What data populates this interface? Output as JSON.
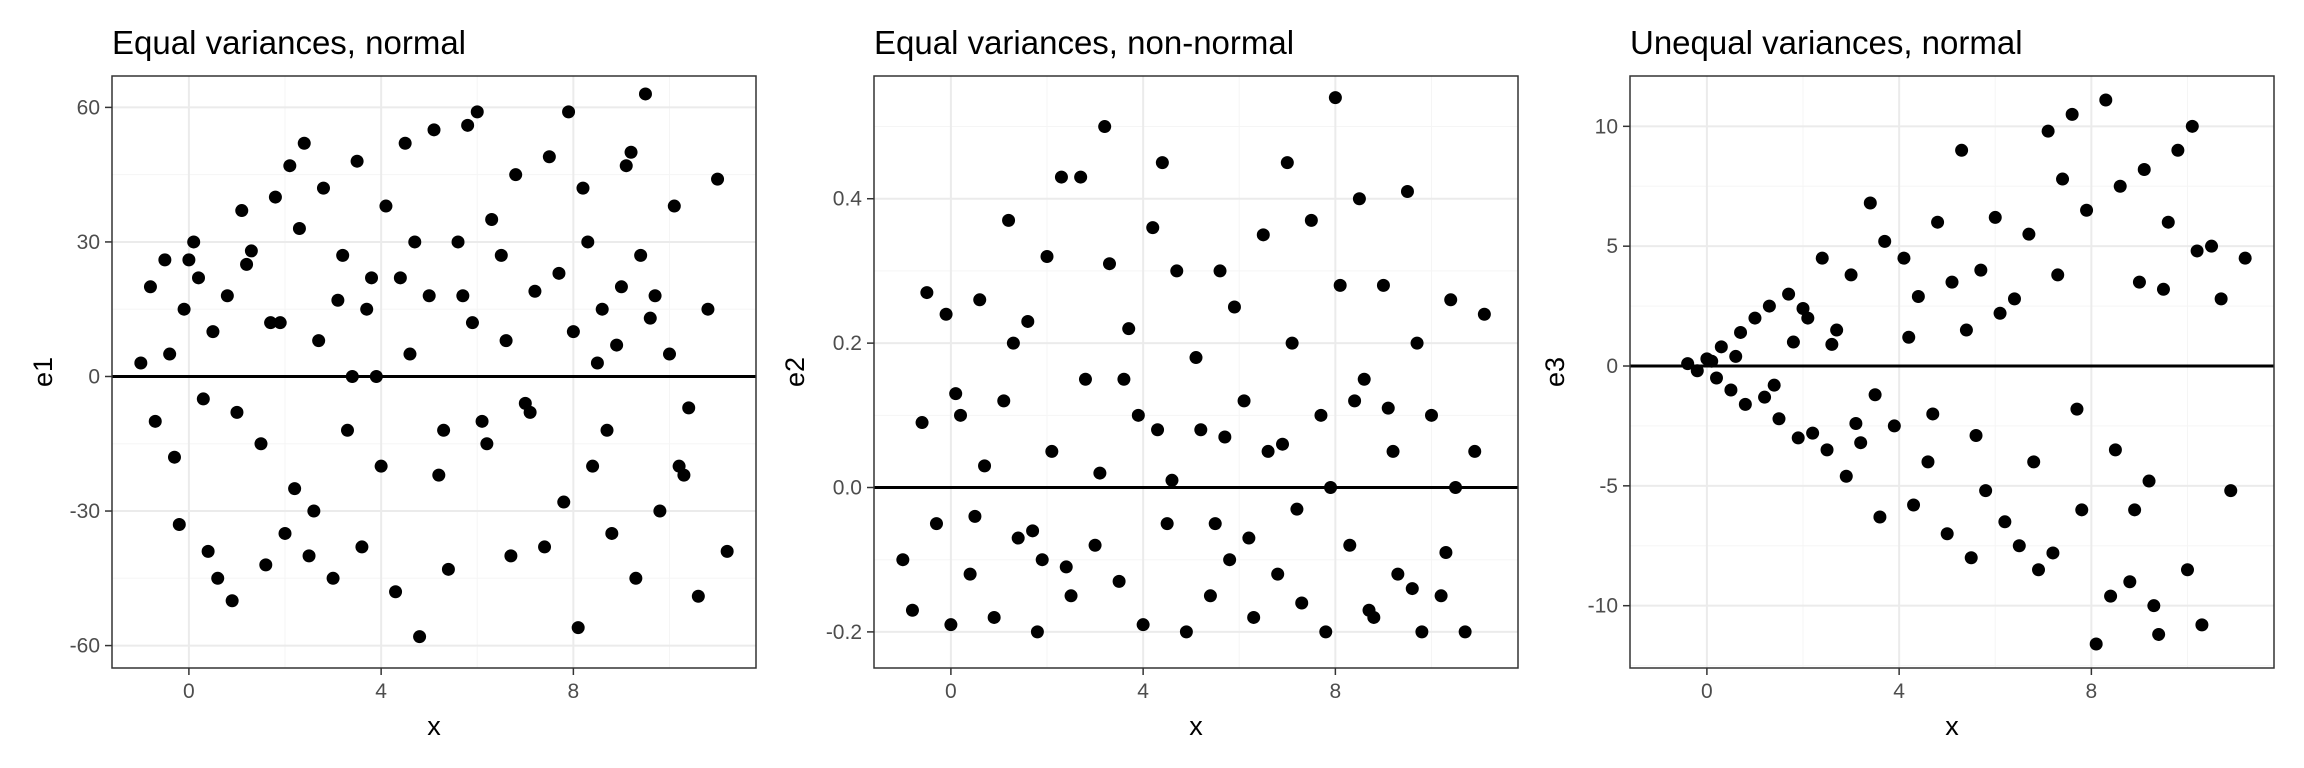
{
  "chart_data": [
    {
      "type": "scatter",
      "title": "Equal variances, normal",
      "xlabel": "x",
      "ylabel": "e1",
      "xlim": [
        -1.6,
        11.8
      ],
      "ylim": [
        -65,
        67
      ],
      "xticks": [
        0,
        4,
        8
      ],
      "yticks": [
        -60,
        -30,
        0,
        30,
        60
      ],
      "xtick_labels": [
        "0",
        "4",
        "8"
      ],
      "ytick_labels": [
        "-60",
        "-30",
        "0",
        "30",
        "60"
      ],
      "hline": 0,
      "grid": true,
      "point_color": "#000000",
      "series": [
        {
          "x": [
            -1.0,
            -0.8,
            -0.7,
            -0.5,
            -0.4,
            -0.3,
            -0.1,
            -0.2,
            0.1,
            0.3,
            0.5,
            0.2,
            0.4,
            0.8,
            0.9,
            1.0,
            1.1,
            1.3,
            1.5,
            1.6,
            1.8,
            1.9,
            2.1,
            2.2,
            2.3,
            2.4,
            2.6,
            2.7,
            2.8,
            3.0,
            3.1,
            3.2,
            3.3,
            3.5,
            3.6,
            3.8,
            3.9,
            4.0,
            4.1,
            4.3,
            4.5,
            4.6,
            4.8,
            5.0,
            5.1,
            5.2,
            5.4,
            5.6,
            5.8,
            5.9,
            6.0,
            6.2,
            6.3,
            6.5,
            6.7,
            6.8,
            7.0,
            7.2,
            7.4,
            7.5,
            7.7,
            7.9,
            8.0,
            8.1,
            8.2,
            8.3,
            8.4,
            8.6,
            8.8,
            8.9,
            9.0,
            9.1,
            9.3,
            9.4,
            9.5,
            9.6,
            9.8,
            10.0,
            10.1,
            10.2,
            10.4,
            10.6,
            10.8,
            11.0,
            11.2,
            3.4,
            5.3,
            6.6,
            2.0,
            4.4,
            7.8,
            9.7,
            1.2,
            0.6,
            8.5,
            10.3,
            4.7,
            6.1,
            3.7,
            2.5,
            5.7,
            7.1,
            9.2,
            1.7,
            0.0,
            8.7
          ],
          "y": [
            3,
            20,
            -10,
            26,
            5,
            -18,
            15,
            -33,
            30,
            -5,
            10,
            22,
            -39,
            18,
            -50,
            -8,
            37,
            28,
            -15,
            -42,
            40,
            12,
            47,
            -25,
            33,
            52,
            -30,
            8,
            42,
            -45,
            17,
            27,
            -12,
            48,
            -38,
            22,
            0,
            -20,
            38,
            -48,
            52,
            5,
            -58,
            18,
            55,
            -22,
            -43,
            30,
            56,
            12,
            59,
            -15,
            35,
            27,
            -40,
            45,
            -6,
            19,
            -38,
            49,
            23,
            59,
            10,
            -56,
            42,
            30,
            -20,
            15,
            -35,
            7,
            20,
            47,
            -45,
            27,
            63,
            13,
            -30,
            5,
            38,
            -20,
            -7,
            -49,
            15,
            44,
            -39,
            0,
            -12,
            8,
            -35,
            22,
            -28,
            18,
            25,
            -45,
            3,
            -22,
            30,
            -10,
            15,
            -40,
            18,
            -8,
            50,
            12,
            26,
            -12
          ]
        }
      ]
    },
    {
      "type": "scatter",
      "title": "Equal variances, non-normal",
      "xlabel": "x",
      "ylabel": "e2",
      "xlim": [
        -1.6,
        11.8
      ],
      "ylim": [
        -0.25,
        0.57
      ],
      "xticks": [
        0,
        4,
        8
      ],
      "yticks": [
        -0.2,
        0.0,
        0.2,
        0.4
      ],
      "xtick_labels": [
        "0",
        "4",
        "8"
      ],
      "ytick_labels": [
        "-0.2",
        "0.0",
        "0.2",
        "0.4"
      ],
      "hline": 0,
      "grid": true,
      "point_color": "#000000",
      "series": [
        {
          "x": [
            -1.0,
            -0.8,
            -0.6,
            -0.5,
            -0.3,
            -0.1,
            0.0,
            0.2,
            0.4,
            0.6,
            0.7,
            0.9,
            1.1,
            1.2,
            1.4,
            1.6,
            1.8,
            2.0,
            2.1,
            2.3,
            2.5,
            2.7,
            2.8,
            3.0,
            3.2,
            3.3,
            3.5,
            3.7,
            3.9,
            4.0,
            4.2,
            4.4,
            4.5,
            4.7,
            4.9,
            5.1,
            5.2,
            5.4,
            5.6,
            5.8,
            5.9,
            6.1,
            6.3,
            6.5,
            6.6,
            6.8,
            7.0,
            7.1,
            7.3,
            7.5,
            7.7,
            7.8,
            8.0,
            8.1,
            8.3,
            8.5,
            8.6,
            8.8,
            9.0,
            9.2,
            9.3,
            9.5,
            9.7,
            9.8,
            10.0,
            10.2,
            10.4,
            10.5,
            10.7,
            10.9,
            11.1,
            3.1,
            5.5,
            6.9,
            1.9,
            4.3,
            7.9,
            9.6,
            1.3,
            0.5,
            8.4,
            10.3,
            4.6,
            6.2,
            3.6,
            2.4,
            5.7,
            7.2,
            9.1,
            1.7,
            0.1,
            8.7
          ],
          "y": [
            -0.1,
            -0.17,
            0.09,
            0.27,
            -0.05,
            0.24,
            -0.19,
            0.1,
            -0.12,
            0.26,
            0.03,
            -0.18,
            0.12,
            0.37,
            -0.07,
            0.23,
            -0.2,
            0.32,
            0.05,
            0.43,
            -0.15,
            0.43,
            0.15,
            -0.08,
            0.5,
            0.31,
            -0.13,
            0.22,
            0.1,
            -0.19,
            0.36,
            0.45,
            -0.05,
            0.3,
            -0.2,
            0.18,
            0.08,
            -0.15,
            0.3,
            -0.1,
            0.25,
            0.12,
            -0.18,
            0.35,
            0.05,
            -0.12,
            0.45,
            0.2,
            -0.16,
            0.37,
            0.1,
            -0.2,
            0.54,
            0.28,
            -0.08,
            0.4,
            0.15,
            -0.18,
            0.28,
            0.05,
            -0.12,
            0.41,
            0.2,
            -0.2,
            0.1,
            -0.15,
            0.26,
            0.0,
            -0.2,
            0.05,
            0.24,
            0.02,
            -0.05,
            0.06,
            -0.1,
            0.08,
            0.0,
            -0.14,
            0.2,
            -0.04,
            0.12,
            -0.09,
            0.01,
            -0.07,
            0.15,
            -0.11,
            0.07,
            -0.03,
            0.11,
            -0.06,
            0.13,
            -0.17
          ]
        }
      ]
    },
    {
      "type": "scatter",
      "title": "Unequal variances, normal",
      "xlabel": "x",
      "ylabel": "e3",
      "xlim": [
        -1.6,
        11.8
      ],
      "ylim": [
        -12.6,
        12.1
      ],
      "xticks": [
        0,
        4,
        8
      ],
      "yticks": [
        -10,
        -5,
        0,
        5,
        10
      ],
      "xtick_labels": [
        "0",
        "4",
        "8"
      ],
      "ytick_labels": [
        "-10",
        "-5",
        "0",
        "5",
        "10"
      ],
      "hline": 0,
      "grid": true,
      "point_color": "#000000",
      "series": [
        {
          "x": [
            -0.4,
            -0.2,
            0.0,
            0.2,
            0.3,
            0.5,
            0.7,
            0.8,
            1.0,
            1.2,
            1.3,
            1.5,
            1.7,
            1.9,
            2.0,
            2.2,
            2.4,
            2.5,
            2.7,
            2.9,
            3.0,
            3.2,
            3.4,
            3.6,
            3.7,
            3.9,
            4.1,
            4.3,
            4.4,
            4.6,
            4.8,
            5.0,
            5.1,
            5.3,
            5.5,
            5.7,
            5.8,
            6.0,
            6.2,
            6.4,
            6.5,
            6.7,
            6.9,
            7.1,
            7.2,
            7.4,
            7.6,
            7.8,
            7.9,
            8.1,
            8.3,
            8.4,
            8.6,
            8.8,
            9.0,
            9.1,
            9.3,
            9.4,
            9.6,
            9.8,
            10.0,
            10.1,
            10.3,
            10.5,
            10.7,
            10.9,
            11.2,
            3.1,
            5.4,
            6.8,
            2.1,
            4.2,
            7.7,
            9.5,
            1.4,
            0.6,
            8.5,
            10.2,
            4.7,
            6.1,
            3.5,
            2.6,
            5.6,
            7.3,
            9.2,
            1.8,
            0.1,
            8.9
          ],
          "y": [
            0.1,
            -0.2,
            0.3,
            -0.5,
            0.8,
            -1.0,
            1.4,
            -1.6,
            2.0,
            -1.3,
            2.5,
            -2.2,
            3.0,
            -3.0,
            2.4,
            -2.8,
            4.5,
            -3.5,
            1.5,
            -4.6,
            3.8,
            -3.2,
            6.8,
            -6.3,
            5.2,
            -2.5,
            4.5,
            -5.8,
            2.9,
            -4.0,
            6.0,
            -7.0,
            3.5,
            9.0,
            -8.0,
            4.0,
            -5.2,
            6.2,
            -6.5,
            2.8,
            -7.5,
            5.5,
            -8.5,
            9.8,
            -7.8,
            7.8,
            10.5,
            -6.0,
            6.5,
            -11.6,
            11.1,
            -9.6,
            7.5,
            -9.0,
            3.5,
            8.2,
            -10.0,
            -11.2,
            6.0,
            9.0,
            -8.5,
            10.0,
            -10.8,
            5.0,
            2.8,
            -5.2,
            4.5,
            -2.4,
            1.5,
            -4.0,
            2.0,
            1.2,
            -1.8,
            3.2,
            -0.8,
            0.4,
            -3.5,
            4.8,
            -2.0,
            2.2,
            -1.2,
            0.9,
            -2.9,
            3.8,
            -4.8,
            1.0,
            0.2,
            -6.0
          ]
        }
      ]
    }
  ]
}
